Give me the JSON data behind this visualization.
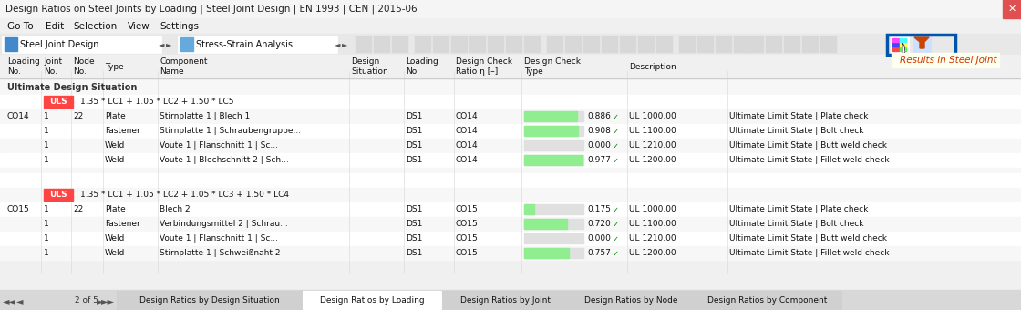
{
  "title": "Design Ratios on Steel Joints by Loading | Steel Joint Design | EN 1993 | CEN | 2015-06",
  "menu_items": [
    "Go To",
    "Edit",
    "Selection",
    "View",
    "Settings"
  ],
  "toolbar_left": "Steel Joint Design",
  "toolbar_right": "Stress-Strain Analysis",
  "tooltip": "Results in Steel Joint",
  "tab_items": [
    "Design Ratios by Design Situation",
    "Design Ratios by Loading",
    "Design Ratios by Joint",
    "Design Ratios by Node",
    "Design Ratios by Component"
  ],
  "active_tab": 1,
  "col_headers": [
    "Loading\nNo.",
    "Joint\nNo.",
    "Node\nNo.",
    "Type",
    "Component\nName",
    "Design\nSituation",
    "Loading\nNo.",
    "Design Check\nRatio η [–]",
    "Design Check\nType",
    "Description"
  ],
  "bg_color": "#f0f0f0",
  "header_bg": "#e8e8e8",
  "title_bg": "#ffffff",
  "row_data": [
    {
      "type": "section",
      "label": "Ultimate Design Situation"
    },
    {
      "type": "uls_row",
      "uls": "ULS",
      "formula": "1.35 * LC1 + 1.05 * LC2 + 1.50 * LC5",
      "loading": "CO14"
    },
    {
      "type": "data",
      "loading": "CO14",
      "joint": "1",
      "node": "22",
      "comp_type": "Plate",
      "name": "Stirnplatte 1 | Blech 1",
      "ds": "DS1",
      "lc": "CO14",
      "ratio": 0.886,
      "check_type": "UL 1000.00",
      "desc": "Ultimate Limit State | Plate check",
      "bar_color": "#90ee90"
    },
    {
      "type": "data",
      "loading": "",
      "joint": "1",
      "node": "",
      "comp_type": "Fastener",
      "name": "Stirnplatte 1 | Schraubengruppe...",
      "ds": "DS1",
      "lc": "CO14",
      "ratio": 0.908,
      "check_type": "UL 1100.00",
      "desc": "Ultimate Limit State | Bolt check",
      "bar_color": "#90ee90"
    },
    {
      "type": "data",
      "loading": "",
      "joint": "1",
      "node": "",
      "comp_type": "Weld",
      "name": "Voute 1 | Flanschnitt 1 | Sc...",
      "ds": "DS1",
      "lc": "CO14",
      "ratio": 0.0,
      "check_type": "UL 1210.00",
      "desc": "Ultimate Limit State | Butt weld check",
      "bar_color": "#90ee90"
    },
    {
      "type": "data",
      "loading": "",
      "joint": "1",
      "node": "",
      "comp_type": "Weld",
      "name": "Voute 1 | Blechschnitt 2 | Sch...",
      "ds": "DS1",
      "lc": "CO14",
      "ratio": 0.977,
      "check_type": "UL 1200.00",
      "desc": "Ultimate Limit State | Fillet weld check",
      "bar_color": "#90ee90"
    },
    {
      "type": "spacer"
    },
    {
      "type": "section",
      "label": ""
    },
    {
      "type": "uls_row",
      "uls": "ULS",
      "formula": "1.35 * LC1 + 1.05 * LC2 + 1.05 * LC3 + 1.50 * LC4",
      "loading": "CO15"
    },
    {
      "type": "data",
      "loading": "CO15",
      "joint": "1",
      "node": "22",
      "comp_type": "Plate",
      "name": "Blech 2",
      "ds": "DS1",
      "lc": "CO15",
      "ratio": 0.175,
      "check_type": "UL 1000.00",
      "desc": "Ultimate Limit State | Plate check",
      "bar_color": "#90ee90"
    },
    {
      "type": "data",
      "loading": "",
      "joint": "1",
      "node": "",
      "comp_type": "Fastener",
      "name": "Verbindungsmittel 2 | Schrau...",
      "ds": "DS1",
      "lc": "CO15",
      "ratio": 0.72,
      "check_type": "UL 1100.00",
      "desc": "Ultimate Limit State | Bolt check",
      "bar_color": "#90ee90"
    },
    {
      "type": "data",
      "loading": "",
      "joint": "1",
      "node": "",
      "comp_type": "Weld",
      "name": "Voute 1 | Flanschnitt 1 | Sc...",
      "ds": "DS1",
      "lc": "CO15",
      "ratio": 0.0,
      "check_type": "UL 1210.00",
      "desc": "Ultimate Limit State | Butt weld check",
      "bar_color": "#90ee90"
    },
    {
      "type": "data",
      "loading": "",
      "joint": "1",
      "node": "",
      "comp_type": "Weld",
      "name": "Stirnplatte 1 | Schweißnaht 2",
      "ds": "DS1",
      "lc": "CO15",
      "ratio": 0.757,
      "check_type": "UL 1200.00",
      "desc": "Ultimate Limit State | Fillet weld check",
      "bar_color": "#90ee90"
    }
  ],
  "highlight_box_color": "#0055aa",
  "uls_color": "#cc0000",
  "uls_bg": "#ff4444",
  "check_color": "#008000",
  "col15_label": "CO15"
}
